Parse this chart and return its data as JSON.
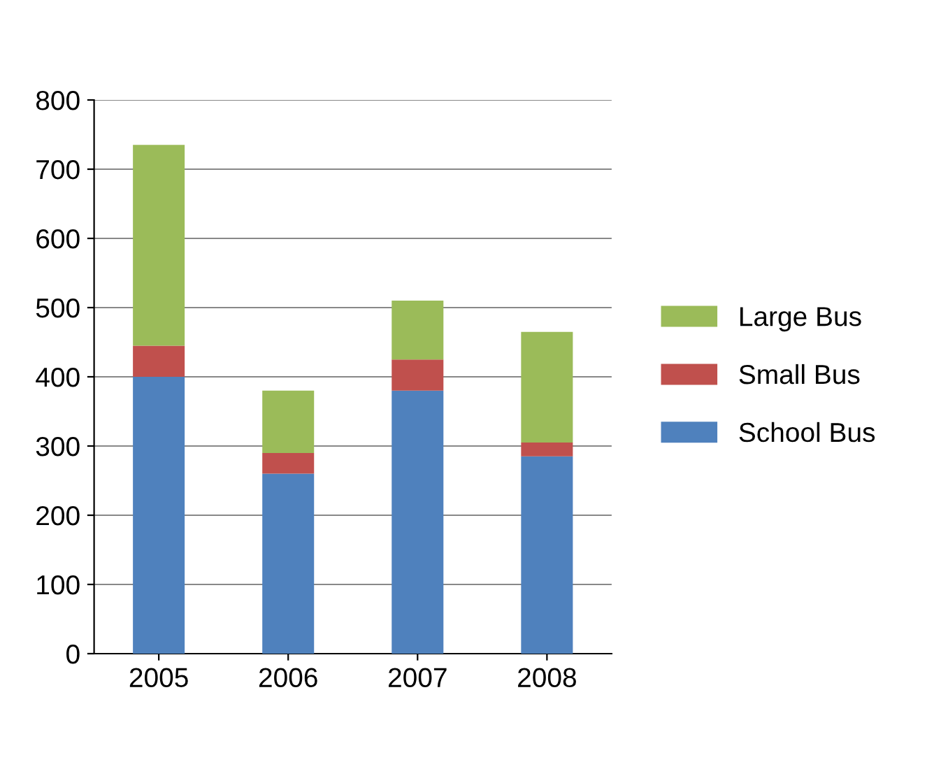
{
  "chart_data": {
    "type": "bar",
    "stacked": true,
    "categories": [
      "2005",
      "2006",
      "2007",
      "2008"
    ],
    "series": [
      {
        "name": "School Bus",
        "color": "#4f81bd",
        "values": [
          400,
          260,
          380,
          285
        ]
      },
      {
        "name": "Small Bus",
        "color": "#c0504d",
        "values": [
          45,
          30,
          45,
          20
        ]
      },
      {
        "name": "Large Bus",
        "color": "#9bbb59",
        "values": [
          290,
          90,
          85,
          160
        ]
      }
    ],
    "ylim": [
      0,
      800
    ],
    "yticks": [
      0,
      100,
      200,
      300,
      400,
      500,
      600,
      700,
      800
    ],
    "grid": "y",
    "legend": "right"
  }
}
